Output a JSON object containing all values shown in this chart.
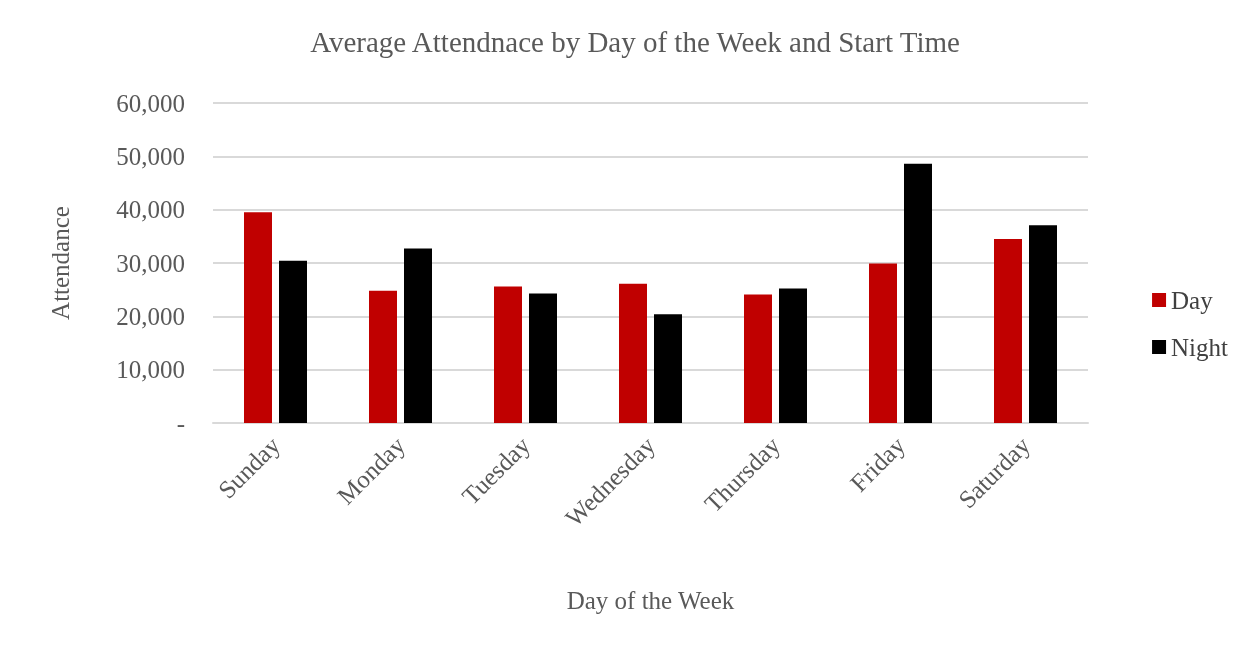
{
  "chart_data": {
    "type": "bar",
    "title": "Average Attendnace by Day of the Week and Start Time",
    "xlabel": "Day of the Week",
    "ylabel": "Attendance",
    "categories": [
      "Sunday",
      "Monday",
      "Tuesday",
      "Wednesday",
      "Thursday",
      "Friday",
      "Saturday"
    ],
    "series": [
      {
        "name": "Day",
        "color": "#c00000",
        "values": [
          39500,
          24800,
          25600,
          26100,
          24100,
          29900,
          34500
        ]
      },
      {
        "name": "Night",
        "color": "#000000",
        "values": [
          30400,
          32700,
          24300,
          20400,
          25200,
          48600,
          37100
        ]
      }
    ],
    "ylim": [
      0,
      60000
    ],
    "yticks": [
      {
        "value": 0,
        "label": "-"
      },
      {
        "value": 10000,
        "label": "10,000"
      },
      {
        "value": 20000,
        "label": "20,000"
      },
      {
        "value": 30000,
        "label": "30,000"
      },
      {
        "value": 40000,
        "label": "40,000"
      },
      {
        "value": 50000,
        "label": "50,000"
      },
      {
        "value": 60000,
        "label": "60,000"
      }
    ],
    "grid": "y",
    "legend": "right"
  }
}
